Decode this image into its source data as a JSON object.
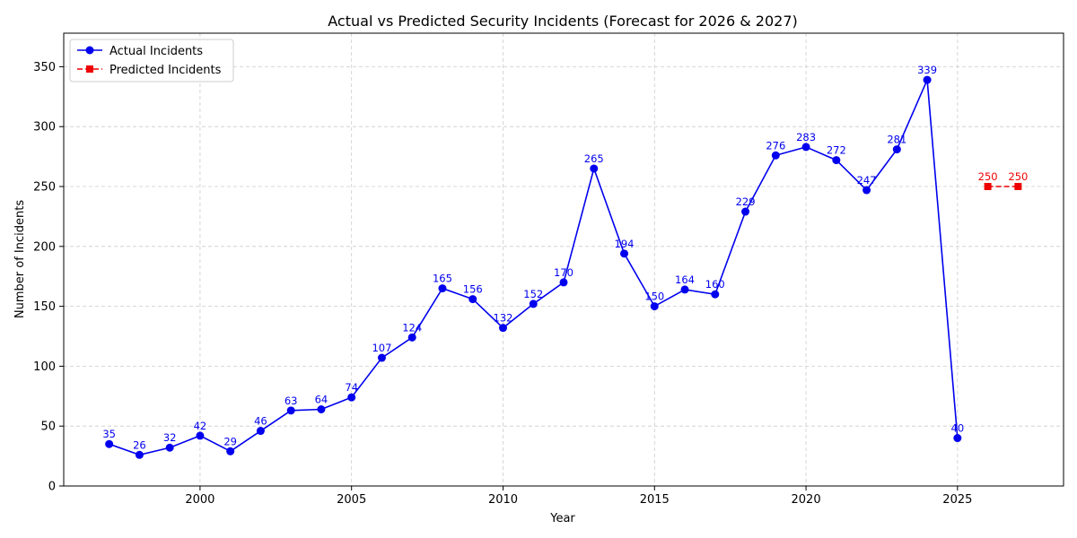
{
  "chart_data": {
    "type": "line",
    "title": "Actual vs Predicted Security Incidents (Forecast for 2026 & 2027)",
    "xlabel": "Year",
    "ylabel": "Number of Incidents",
    "xlim": [
      1995.5,
      2028.5
    ],
    "ylim": [
      0,
      378
    ],
    "x_ticks": [
      2000,
      2005,
      2010,
      2015,
      2020,
      2025
    ],
    "y_ticks": [
      0,
      50,
      100,
      150,
      200,
      250,
      300,
      350
    ],
    "grid": true,
    "legend_position": "top-left",
    "series": [
      {
        "name": "Actual Incidents",
        "color": "#0000ee",
        "line_style": "solid",
        "marker": "circle",
        "x": [
          1997,
          1998,
          1999,
          2000,
          2001,
          2002,
          2003,
          2004,
          2005,
          2006,
          2007,
          2008,
          2009,
          2010,
          2011,
          2012,
          2013,
          2014,
          2015,
          2016,
          2017,
          2018,
          2019,
          2020,
          2021,
          2022,
          2023,
          2024,
          2025
        ],
        "values": [
          35,
          26,
          32,
          42,
          29,
          46,
          63,
          64,
          74,
          107,
          124,
          165,
          156,
          132,
          152,
          170,
          265,
          194,
          150,
          164,
          160,
          229,
          276,
          283,
          272,
          247,
          281,
          339,
          40
        ]
      },
      {
        "name": "Predicted Incidents",
        "color": "#ee0000",
        "line_style": "dashed",
        "marker": "square",
        "x": [
          2026,
          2027
        ],
        "values": [
          250,
          250
        ]
      }
    ]
  }
}
